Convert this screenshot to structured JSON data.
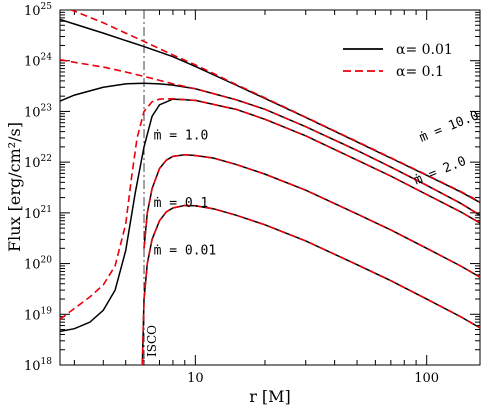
{
  "chart_data": {
    "type": "line",
    "title": "",
    "xlabel": "r  [M]",
    "ylabel": "Flux  [erg/cm²/s]",
    "x_scale": "log",
    "y_scale": "log",
    "xlim": [
      2.6,
      170
    ],
    "ylim": [
      1e+18,
      1e+25
    ],
    "x_ticks": [
      {
        "value": 10,
        "label": "10"
      },
      {
        "value": 100,
        "label": "100"
      }
    ],
    "y_ticks": [
      {
        "value": 1e+18,
        "base": "10",
        "exp": "18"
      },
      {
        "value": 1e+19,
        "base": "10",
        "exp": "19"
      },
      {
        "value": 1e+20,
        "base": "10",
        "exp": "20"
      },
      {
        "value": 1e+21,
        "base": "10",
        "exp": "21"
      },
      {
        "value": 1e+22,
        "base": "10",
        "exp": "22"
      },
      {
        "value": 1e+23,
        "base": "10",
        "exp": "23"
      },
      {
        "value": 1e+24,
        "base": "10",
        "exp": "24"
      },
      {
        "value": 1e+25,
        "base": "10",
        "exp": "25"
      }
    ],
    "legend": {
      "placement": "top-right",
      "entries": [
        {
          "label": "α= 0.01",
          "color": "#000000",
          "dash": "solid"
        },
        {
          "label": "α= 0.1",
          "color": "#e8000b",
          "dash": "dashed"
        }
      ]
    },
    "vline": {
      "x": 6.0,
      "label": "ISCO"
    },
    "annotations": [
      {
        "text": "ṁ = 10.0",
        "x": 95,
        "y": 2.5e+22
      },
      {
        "text": "ṁ = 2.0",
        "x": 90,
        "y": 3.6e+21
      },
      {
        "text": "ṁ = 1.0",
        "x": 6.6,
        "y": 2.8e+22
      },
      {
        "text": "ṁ = 0.1",
        "x": 6.6,
        "y": 1.3e+21
      },
      {
        "text": "ṁ = 0.01",
        "x": 6.6,
        "y": 1.5e+20
      }
    ],
    "series": [
      {
        "mdot": "10.0",
        "alpha": "0.01",
        "color": "#000000",
        "dash": "solid",
        "x": [
          2.6,
          3,
          4,
          5,
          6,
          8,
          10,
          15,
          20,
          30,
          50,
          70,
          100,
          140,
          170
        ],
        "y": [
          6.5e+24,
          5.3e+24,
          3.5e+24,
          2.5e+24,
          1.9e+24,
          1.2e+24,
          7.7e+23,
          3.3e+23,
          1.8e+23,
          7.6e+22,
          2.5e+22,
          1.2e+22,
          5.5e+21,
          2.6e+21,
          1.6e+21
        ]
      },
      {
        "mdot": "10.0",
        "alpha": "0.1",
        "color": "#e8000b",
        "dash": "dashed",
        "x": [
          2.6,
          3,
          4,
          5,
          6,
          8,
          10,
          15,
          20,
          30,
          50,
          70,
          100,
          140,
          170
        ],
        "y": [
          1.2e+25,
          9.5e+24,
          5.6e+24,
          3.5e+24,
          2.4e+24,
          1.3e+24,
          8.3e+23,
          3.4e+23,
          1.85e+23,
          7.7e+22,
          2.55e+22,
          1.22e+22,
          5.6e+21,
          2.65e+21,
          1.65e+21
        ]
      },
      {
        "mdot": "2.0",
        "alpha": "0.01",
        "color": "#000000",
        "dash": "solid",
        "x": [
          2.6,
          3,
          4,
          5,
          6,
          7,
          8,
          10,
          15,
          20,
          30,
          50,
          70,
          100,
          140,
          170
        ],
        "y": [
          1.6e+23,
          2.1e+23,
          3e+23,
          3.5e+23,
          3.6e+23,
          3.5e+23,
          3.3e+23,
          2.8e+23,
          1.7e+23,
          1.1e+23,
          5e+22,
          1.7e+22,
          8e+21,
          3.5e+21,
          1.55e+21,
          9e+20
        ]
      },
      {
        "mdot": "2.0",
        "alpha": "0.1",
        "color": "#e8000b",
        "dash": "dashed",
        "x": [
          2.6,
          3,
          4,
          5,
          6,
          7,
          8,
          10,
          15,
          20,
          30,
          50,
          70,
          100,
          140,
          170
        ],
        "y": [
          1.05e+24,
          9.3e+23,
          7.5e+23,
          6e+23,
          4.9e+23,
          4.1e+23,
          3.5e+23,
          2.8e+23,
          1.7e+23,
          1.1e+23,
          5e+22,
          1.7e+22,
          8e+21,
          3.5e+21,
          1.55e+21,
          9e+20
        ]
      },
      {
        "mdot": "1.0",
        "alpha": "0.01",
        "color": "#000000",
        "dash": "solid",
        "x": [
          2.6,
          3,
          3.5,
          4,
          4.5,
          5,
          5.5,
          6,
          6.5,
          7,
          8,
          10,
          15,
          20,
          30,
          50,
          70,
          100,
          140,
          170
        ],
        "y": [
          4.6e+18,
          5.2e+18,
          7e+18,
          1.2e+19,
          3e+19,
          1.8e+20,
          2.5e+21,
          2e+22,
          8e+22,
          1.35e+23,
          1.75e+23,
          1.65e+23,
          1.1e+23,
          7e+22,
          3.3e+22,
          1.1e+22,
          5.3e+21,
          2.3e+21,
          1.05e+21,
          6.3e+20
        ]
      },
      {
        "mdot": "1.0",
        "alpha": "0.1",
        "color": "#e8000b",
        "dash": "dashed",
        "x": [
          2.6,
          3,
          3.5,
          4,
          4.5,
          5,
          5.3,
          5.6,
          6,
          6.5,
          7,
          8,
          10,
          15,
          20,
          30,
          50,
          70,
          100,
          140,
          170
        ],
        "y": [
          8e+18,
          1.3e+19,
          2.2e+19,
          3.8e+19,
          9e+19,
          6e+20,
          5e+21,
          3e+22,
          1e+23,
          1.55e+23,
          1.75e+23,
          1.78e+23,
          1.65e+23,
          1.1e+23,
          7e+22,
          3.3e+22,
          1.1e+22,
          5.3e+21,
          2.3e+21,
          1.05e+21,
          6.3e+20
        ]
      },
      {
        "mdot": "0.1",
        "alpha": "0.01",
        "color": "#000000",
        "dash": "solid",
        "x": [
          6.0,
          6.2,
          6.5,
          7,
          7.5,
          8,
          9,
          10,
          12,
          15,
          20,
          30,
          50,
          70,
          100,
          140,
          170
        ],
        "y": [
          2e+20,
          1e+21,
          3e+21,
          7.5e+21,
          1.1e+22,
          1.3e+22,
          1.4e+22,
          1.35e+22,
          1.2e+22,
          9e+21,
          5.8e+21,
          2.8e+21,
          9.5e+20,
          4.6e+20,
          2e+20,
          9e+19,
          5.4e+19
        ]
      },
      {
        "mdot": "0.1",
        "alpha": "0.1",
        "color": "#e8000b",
        "dash": "dashed",
        "x": [
          6.0,
          6.2,
          6.5,
          7,
          7.5,
          8,
          9,
          10,
          12,
          15,
          20,
          30,
          50,
          70,
          100,
          140,
          170
        ],
        "y": [
          2e+20,
          1e+21,
          3e+21,
          7.5e+21,
          1.1e+22,
          1.3e+22,
          1.4e+22,
          1.35e+22,
          1.2e+22,
          9e+21,
          5.8e+21,
          2.8e+21,
          9.5e+20,
          4.6e+20,
          2e+20,
          9e+19,
          5.4e+19
        ]
      },
      {
        "mdot": "0.01",
        "alpha": "0.01",
        "color": "#000000",
        "dash": "solid",
        "x": [
          5.9,
          6.0,
          6.2,
          6.5,
          7,
          7.5,
          8,
          9,
          10,
          12,
          15,
          20,
          30,
          50,
          70,
          100,
          140,
          170
        ],
        "y": [
          1e+18,
          2e+19,
          1e+20,
          3e+20,
          7e+20,
          1.05e+21,
          1.25e+21,
          1.4e+21,
          1.38e+21,
          1.2e+21,
          9e+20,
          5.8e+20,
          2.8e+20,
          9.5e+19,
          4.6e+19,
          2e+19,
          9e+18,
          5.4e+18
        ]
      },
      {
        "mdot": "0.01",
        "alpha": "0.1",
        "color": "#e8000b",
        "dash": "dashed",
        "x": [
          5.9,
          6.0,
          6.2,
          6.5,
          7,
          7.5,
          8,
          9,
          10,
          12,
          15,
          20,
          30,
          50,
          70,
          100,
          140,
          170
        ],
        "y": [
          1e+18,
          2e+19,
          1e+20,
          3e+20,
          7e+20,
          1.05e+21,
          1.25e+21,
          1.4e+21,
          1.38e+21,
          1.2e+21,
          9e+20,
          5.8e+20,
          2.8e+20,
          9.5e+19,
          4.6e+19,
          2e+19,
          9e+18,
          5.4e+18
        ]
      }
    ]
  }
}
